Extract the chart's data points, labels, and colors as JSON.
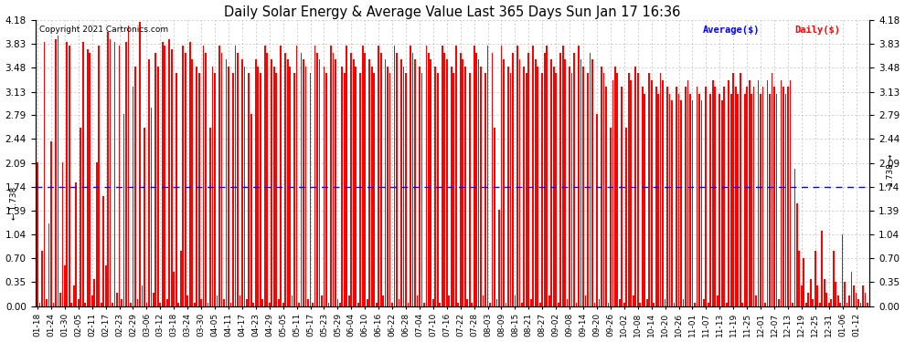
{
  "title": "Daily Solar Energy & Average Value Last 365 Days Sun Jan 17 16:36",
  "copyright": "Copyright 2021 Cartronics.com",
  "average_value": 1.738,
  "ylim": [
    0.0,
    4.18
  ],
  "yticks": [
    0.0,
    0.35,
    0.7,
    1.04,
    1.39,
    1.74,
    2.09,
    2.44,
    2.79,
    3.13,
    3.48,
    3.83,
    4.18
  ],
  "bar_color": "#ff0000",
  "avg_line_color": "#0000ff",
  "background_color": "#ffffff",
  "grid_color": "#bbbbbb",
  "legend_avg_color": "#0000ff",
  "legend_daily_color": "#ff0000",
  "x_labels": [
    "01-18",
    "01-24",
    "01-30",
    "02-05",
    "02-11",
    "02-17",
    "02-23",
    "02-29",
    "03-06",
    "03-12",
    "03-18",
    "03-24",
    "03-30",
    "04-05",
    "04-11",
    "04-17",
    "04-23",
    "04-29",
    "05-05",
    "05-11",
    "05-17",
    "05-23",
    "05-29",
    "06-04",
    "06-10",
    "06-16",
    "06-22",
    "06-28",
    "07-04",
    "07-10",
    "07-16",
    "07-22",
    "07-28",
    "08-03",
    "08-09",
    "08-15",
    "08-21",
    "08-27",
    "09-02",
    "09-08",
    "09-14",
    "09-20",
    "09-26",
    "10-02",
    "10-08",
    "10-14",
    "10-20",
    "10-26",
    "11-01",
    "11-07",
    "11-13",
    "11-19",
    "11-25",
    "12-01",
    "12-07",
    "12-13",
    "12-19",
    "12-25",
    "12-31",
    "01-06",
    "01-12"
  ],
  "values": [
    2.1,
    0.05,
    0.8,
    3.85,
    0.1,
    1.2,
    2.4,
    0.05,
    3.9,
    3.95,
    0.2,
    2.1,
    0.6,
    3.85,
    3.8,
    0.05,
    0.3,
    1.8,
    0.1,
    2.6,
    3.85,
    0.05,
    3.75,
    3.7,
    0.15,
    0.4,
    2.1,
    3.8,
    0.05,
    1.6,
    0.6,
    4.0,
    3.9,
    0.05,
    3.85,
    0.2,
    3.8,
    0.1,
    2.8,
    3.85,
    4.1,
    0.05,
    3.2,
    3.5,
    0.1,
    4.15,
    0.3,
    2.6,
    0.05,
    3.6,
    2.9,
    0.2,
    3.7,
    3.5,
    0.05,
    3.85,
    3.8,
    0.1,
    3.9,
    3.75,
    0.5,
    3.4,
    0.05,
    0.8,
    3.8,
    3.7,
    0.15,
    3.85,
    3.6,
    0.05,
    3.5,
    3.4,
    0.1,
    3.8,
    3.7,
    0.05,
    2.6,
    3.5,
    3.4,
    0.15,
    3.8,
    3.7,
    0.1,
    3.6,
    3.5,
    0.05,
    3.4,
    3.8,
    3.7,
    0.15,
    3.6,
    3.5,
    0.1,
    3.4,
    2.8,
    0.05,
    3.6,
    3.5,
    3.4,
    0.1,
    3.8,
    3.7,
    0.05,
    3.6,
    3.5,
    3.4,
    0.1,
    3.8,
    0.05,
    3.7,
    3.6,
    3.5,
    0.15,
    3.4,
    3.8,
    0.05,
    3.7,
    3.6,
    3.5,
    0.1,
    3.4,
    0.05,
    3.8,
    3.7,
    3.6,
    0.15,
    3.5,
    3.4,
    0.05,
    3.8,
    3.7,
    3.6,
    0.1,
    0.05,
    3.5,
    3.4,
    3.8,
    0.15,
    3.7,
    3.6,
    3.5,
    0.05,
    3.4,
    3.8,
    3.7,
    0.1,
    3.6,
    3.5,
    3.4,
    0.05,
    3.8,
    3.7,
    0.15,
    3.6,
    3.5,
    3.4,
    0.05,
    3.8,
    3.7,
    0.1,
    3.6,
    3.5,
    3.4,
    0.05,
    3.8,
    3.7,
    3.6,
    0.15,
    3.5,
    3.4,
    0.05,
    3.8,
    3.7,
    3.6,
    0.1,
    3.5,
    3.4,
    0.05,
    3.8,
    3.7,
    3.6,
    0.15,
    3.5,
    3.4,
    3.8,
    0.05,
    3.7,
    3.6,
    3.5,
    0.1,
    3.4,
    0.05,
    3.8,
    3.7,
    3.6,
    3.5,
    0.15,
    3.4,
    3.8,
    0.05,
    3.7,
    2.6,
    0.1,
    1.4,
    3.8,
    3.6,
    0.05,
    3.5,
    3.4,
    3.7,
    0.15,
    3.8,
    3.6,
    0.05,
    3.5,
    3.4,
    3.7,
    0.1,
    3.8,
    3.6,
    3.5,
    0.05,
    3.4,
    3.7,
    3.8,
    0.15,
    3.6,
    3.5,
    3.4,
    0.05,
    3.7,
    3.8,
    3.6,
    0.1,
    3.5,
    3.4,
    3.7,
    0.05,
    3.8,
    3.6,
    3.5,
    0.15,
    3.4,
    3.7,
    3.6,
    0.05,
    2.8,
    0.1,
    3.5,
    3.4,
    3.2,
    0.05,
    2.6,
    3.3,
    3.5,
    3.4,
    0.1,
    3.2,
    0.05,
    2.6,
    3.4,
    3.3,
    0.15,
    3.5,
    3.4,
    0.05,
    3.2,
    3.1,
    0.1,
    3.4,
    3.3,
    0.05,
    3.2,
    3.1,
    3.4,
    3.3,
    0.1,
    3.2,
    3.1,
    3.0,
    0.05,
    3.2,
    3.1,
    3.0,
    0.1,
    3.2,
    3.3,
    3.1,
    3.0,
    0.05,
    3.2,
    3.1,
    3.0,
    0.1,
    3.2,
    0.05,
    3.1,
    3.3,
    3.2,
    0.15,
    3.1,
    3.0,
    3.2,
    0.05,
    3.3,
    3.1,
    3.4,
    3.2,
    3.1,
    3.4,
    0.05,
    3.1,
    3.2,
    3.3,
    3.1,
    3.2,
    0.15,
    3.3,
    3.1,
    3.2,
    0.05,
    3.3,
    3.1,
    3.4,
    3.2,
    3.1,
    0.1,
    3.3,
    3.2,
    3.1,
    3.2,
    3.3,
    0.05,
    2.0,
    1.5,
    0.8,
    0.3,
    0.7,
    0.05,
    0.2,
    0.4,
    0.1,
    0.8,
    0.3,
    0.05,
    1.1,
    0.4,
    0.2,
    0.05,
    0.1,
    0.8,
    0.35,
    0.15,
    0.05,
    1.05,
    0.35,
    0.05,
    0.15,
    0.5,
    0.3,
    0.2,
    0.1,
    0.05,
    0.3,
    0.2,
    0.05
  ]
}
